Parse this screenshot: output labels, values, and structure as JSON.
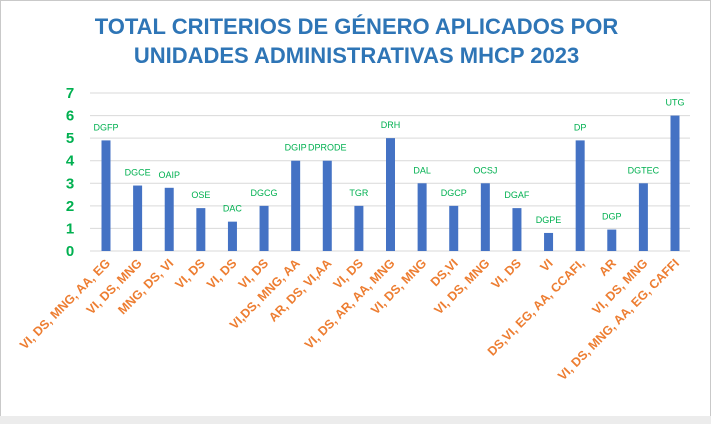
{
  "chart_data": {
    "type": "bar",
    "title_lines": [
      "TOTAL CRITERIOS DE GÉNERO APLICADOS POR",
      "UNIDADES ADMINISTRATIVAS MHCP 2023"
    ],
    "ylim": [
      0,
      7
    ],
    "yticks": [
      "0",
      "1",
      "2",
      "3",
      "4",
      "5",
      "6",
      "7"
    ],
    "grid": true,
    "colors": {
      "bar": "#4472c4",
      "title": "#2e75b6",
      "y_ticks": "#00b050",
      "x_ticks": "#ed7d31",
      "data_labels": "#00b050"
    },
    "categories": [
      "VI, DS, MNG, AA, EG",
      "VI, DS, MNG",
      "MNG, DS, VI",
      "VI, DS",
      "VI, DS",
      "VI, DS",
      "VI,DS, MNG, AA",
      "AR, DS, VI,AA",
      "VI, DS",
      "VI, DS, AR, AA, MNG",
      "VI, DS, MNG",
      "DS,VI",
      "VI, DS, MNG",
      "VI, DS",
      "VI",
      "DS,VI, EG, AA, CCAFI,",
      "AR",
      "VI, DS, MNG",
      "VI, DS, MNG, AA, EG, CAFFI"
    ],
    "data_labels": [
      "DGFP",
      "DGCE",
      "OAIP",
      "OSE",
      "DAC",
      "DGCG",
      "DGIP",
      "DPRODE",
      "TGR",
      "DRH",
      "DAL",
      "DGCP",
      "OCSJ",
      "DGAF",
      "DGPE",
      "DP",
      "DGP",
      "DGTEC",
      "UTG"
    ],
    "values": [
      4.9,
      2.9,
      2.8,
      1.9,
      1.3,
      2.0,
      4.0,
      4.0,
      2.0,
      5.0,
      3.0,
      2.0,
      3.0,
      1.9,
      0.8,
      4.9,
      0.95,
      3.0,
      6.0
    ]
  }
}
